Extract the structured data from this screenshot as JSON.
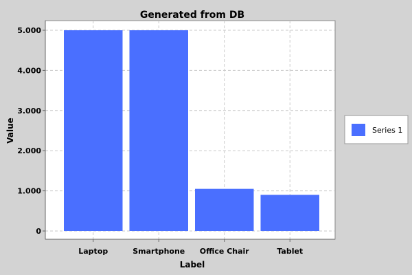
{
  "chart_data": {
    "type": "bar",
    "title": "Generated from DB",
    "xlabel": "Label",
    "ylabel": "Value",
    "categories": [
      "Laptop",
      "Smartphone",
      "Office Chair",
      "Tablet"
    ],
    "series": [
      {
        "name": "Series 1",
        "values": [
          5000,
          5000,
          1050,
          900
        ],
        "color": "#4a6fff"
      }
    ],
    "ylim": [
      0,
      5000
    ],
    "yticks": [
      0,
      1000,
      2000,
      3000,
      4000,
      5000
    ],
    "ytick_labels": [
      "0",
      "1.000",
      "2.000",
      "3.000",
      "4.000",
      "5.000"
    ],
    "grid": true,
    "legend_position": "right",
    "colors": {
      "background": "#d3d3d3",
      "plot_background": "#ffffff",
      "grid": "#c8c8c8"
    }
  }
}
